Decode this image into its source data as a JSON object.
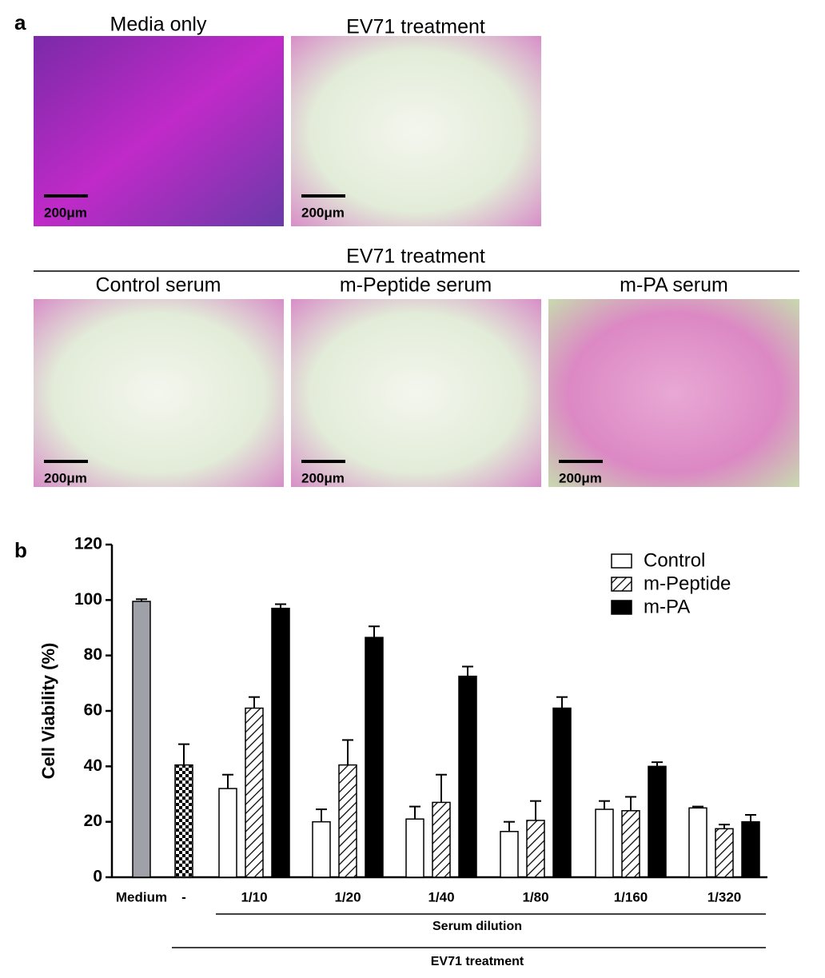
{
  "figure": {
    "panel_a": {
      "label": "a",
      "top_titles": [
        "Media only",
        "EV71 treatment"
      ],
      "group_title": "EV71 treatment",
      "bottom_titles": [
        "Control serum",
        "m-Peptide serum",
        "m-PA serum"
      ],
      "scale_bar": "200μm"
    },
    "panel_b": {
      "label": "b"
    }
  },
  "chart_data": {
    "type": "bar",
    "ylabel": "Cell Viability  (%)",
    "categories": [
      "Medium",
      "-",
      "1/10",
      "1/20",
      "1/40",
      "1/80",
      "1/160",
      "1/320"
    ],
    "ylim": [
      0,
      120
    ],
    "yticks": [
      0,
      20,
      40,
      60,
      80,
      100,
      120
    ],
    "reference_bars": {
      "values": [
        99.5,
        40.5,
        null,
        null,
        null,
        null,
        null,
        null
      ],
      "errors": [
        0.8,
        7.5,
        null,
        null,
        null,
        null,
        null,
        null
      ],
      "colors": [
        "#a0a0a8",
        "#000000"
      ],
      "patterns": [
        null,
        "checker"
      ]
    },
    "series": [
      {
        "name": "Control",
        "color": "#ffffff",
        "pattern": null,
        "values": [
          null,
          null,
          32,
          20,
          21,
          16.5,
          24.5,
          25
        ],
        "errors": [
          null,
          null,
          5,
          4.5,
          4.5,
          3.5,
          3,
          0.5
        ]
      },
      {
        "name": "m-Peptide",
        "color": "#ffffff",
        "pattern": "hatch",
        "values": [
          null,
          null,
          61,
          40.5,
          27,
          20.5,
          24,
          17.5
        ],
        "errors": [
          null,
          null,
          4,
          9,
          10,
          7,
          5,
          1.5
        ]
      },
      {
        "name": "m-PA",
        "color": "#000000",
        "pattern": null,
        "values": [
          null,
          null,
          97,
          86.5,
          72.5,
          61,
          40,
          20
        ],
        "errors": [
          null,
          null,
          1.5,
          4,
          3.5,
          4,
          1.5,
          2.5
        ]
      }
    ],
    "legend": "top-right",
    "annotations": [
      "Serum dilution",
      "EV71 treatment"
    ]
  }
}
